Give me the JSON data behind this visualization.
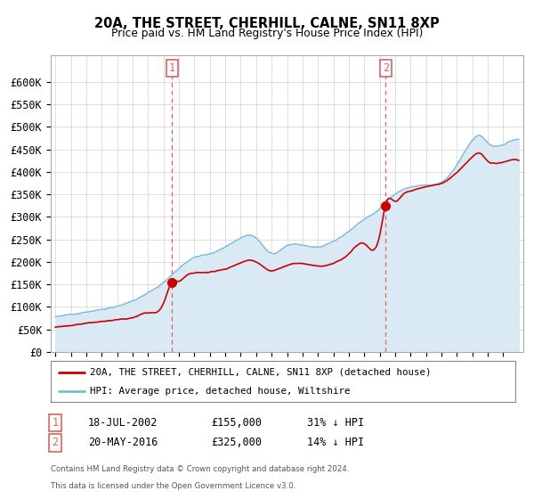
{
  "title": "20A, THE STREET, CHERHILL, CALNE, SN11 8XP",
  "subtitle": "Price paid vs. HM Land Registry's House Price Index (HPI)",
  "legend_line1": "20A, THE STREET, CHERHILL, CALNE, SN11 8XP (detached house)",
  "legend_line2": "HPI: Average price, detached house, Wiltshire",
  "footer1": "Contains HM Land Registry data © Crown copyright and database right 2024.",
  "footer2": "This data is licensed under the Open Government Licence v3.0.",
  "annotation1": {
    "label": "1",
    "date": "18-JUL-2002",
    "price": "£155,000",
    "hpi": "31% ↓ HPI"
  },
  "annotation2": {
    "label": "2",
    "date": "20-MAY-2016",
    "price": "£325,000",
    "hpi": "14% ↓ HPI"
  },
  "hpi_color": "#7ab8d9",
  "hpi_fill_color": "#daeaf5",
  "price_color": "#cc0000",
  "dashed_line_color": "#e06060",
  "marker_color": "#cc0000",
  "grid_color": "#d8d8d8",
  "ylim": [
    0,
    660000
  ],
  "yticks": [
    0,
    50000,
    100000,
    150000,
    200000,
    250000,
    300000,
    350000,
    400000,
    450000,
    500000,
    550000,
    600000
  ],
  "sale1_x": 2002.54,
  "sale1_y": 155000,
  "sale2_x": 2016.38,
  "sale2_y": 325000,
  "xmin": 1994.7,
  "xmax": 2025.3
}
